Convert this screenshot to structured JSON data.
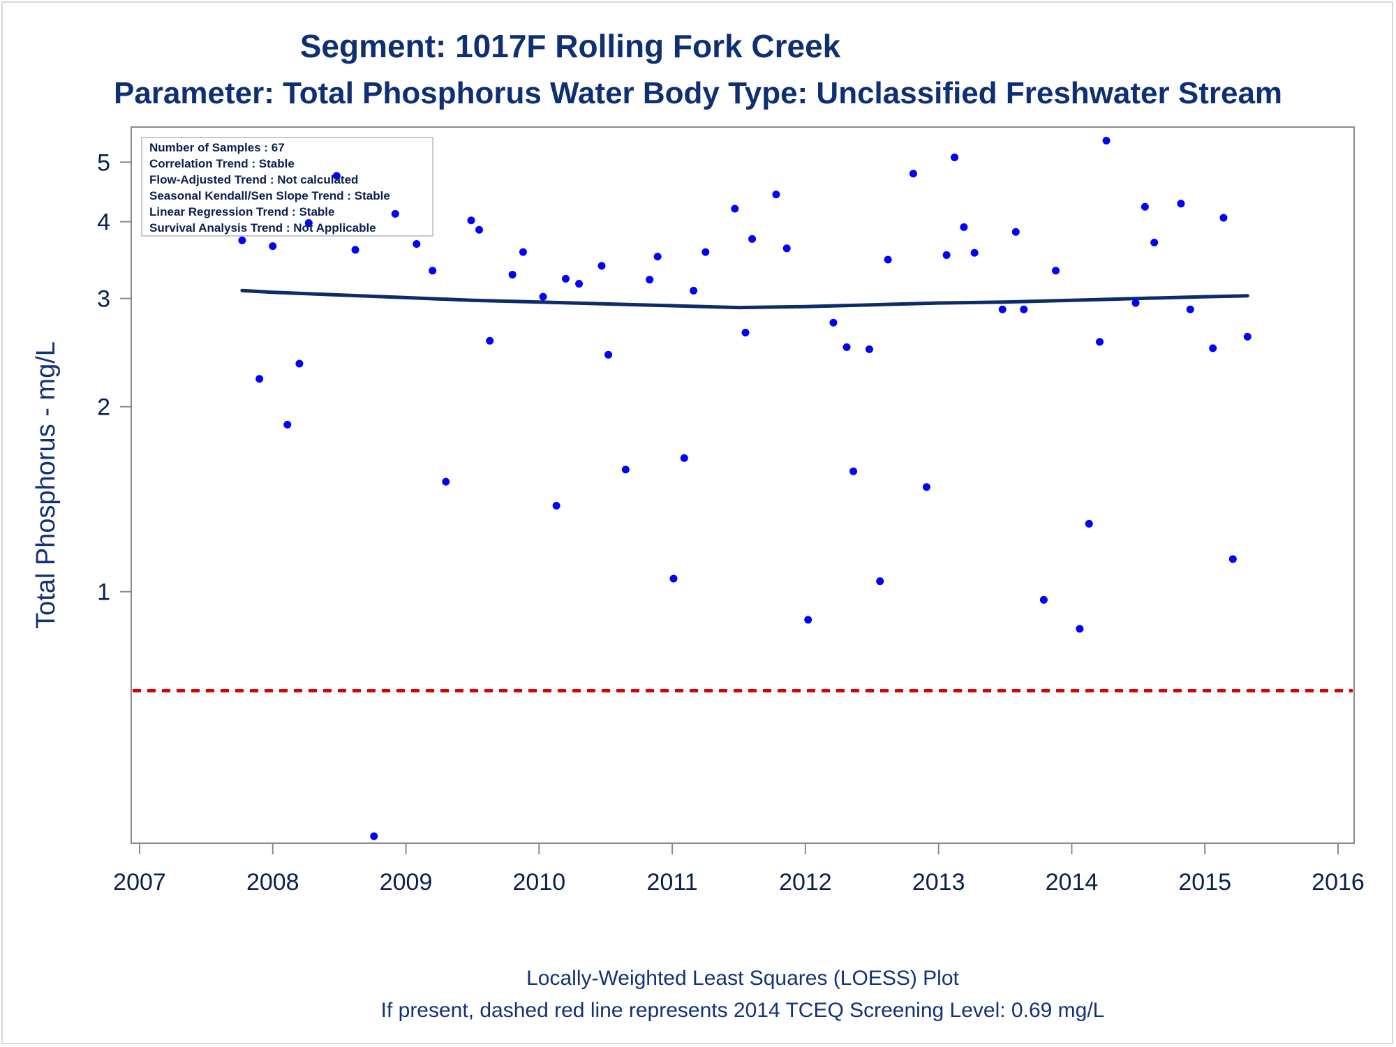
{
  "titles": {
    "line1": "Segment: 1017F  Rolling Fork Creek",
    "line2": "Parameter: Total Phosphorus   Water Body Type: Unclassified Freshwater Stream"
  },
  "stats": [
    "Number of Samples : 67",
    "Correlation Trend : Stable",
    "Flow-Adjusted Trend : Not calculated",
    "Seasonal Kendall/Sen Slope Trend : Stable",
    "Linear Regression Trend : Stable",
    "Survival Analysis Trend : Not Applicable"
  ],
  "footnotes": {
    "line1": "Locally-Weighted Least Squares (LOESS) Plot",
    "line2": "If present, dashed red line represents 2014 TCEQ Screening Level: 0.69 mg/L"
  },
  "colors": {
    "points": "#0000ff",
    "loess": "#0b2b6b",
    "screening": "#dd0000",
    "axis": "#8a8a8a"
  },
  "chart_data": {
    "type": "scatter",
    "scale_y": "log",
    "ylabel": "Total Phosphorus - mg/L",
    "xlabel": "",
    "xlim": [
      2007,
      2016
    ],
    "ylim": [
      0.4,
      5.6
    ],
    "x_ticks": [
      2007,
      2008,
      2009,
      2010,
      2011,
      2012,
      2013,
      2014,
      2015,
      2016
    ],
    "y_ticks": [
      1,
      2,
      3,
      4,
      5
    ],
    "grid": false,
    "screening_level": 0.69,
    "points": [
      {
        "x": 2007.77,
        "y": 3.73
      },
      {
        "x": 2007.9,
        "y": 2.22
      },
      {
        "x": 2008.0,
        "y": 3.65
      },
      {
        "x": 2008.11,
        "y": 1.87
      },
      {
        "x": 2008.2,
        "y": 2.35
      },
      {
        "x": 2008.27,
        "y": 3.98
      },
      {
        "x": 2008.48,
        "y": 4.75
      },
      {
        "x": 2008.62,
        "y": 3.6
      },
      {
        "x": 2008.76,
        "y": 0.4
      },
      {
        "x": 2008.92,
        "y": 4.12
      },
      {
        "x": 2009.08,
        "y": 3.68
      },
      {
        "x": 2009.2,
        "y": 3.33
      },
      {
        "x": 2009.3,
        "y": 1.51
      },
      {
        "x": 2009.49,
        "y": 4.02
      },
      {
        "x": 2009.55,
        "y": 3.88
      },
      {
        "x": 2009.63,
        "y": 2.56
      },
      {
        "x": 2009.8,
        "y": 3.28
      },
      {
        "x": 2009.88,
        "y": 3.57
      },
      {
        "x": 2010.03,
        "y": 3.02
      },
      {
        "x": 2010.13,
        "y": 1.38
      },
      {
        "x": 2010.2,
        "y": 3.23
      },
      {
        "x": 2010.3,
        "y": 3.17
      },
      {
        "x": 2010.47,
        "y": 3.39
      },
      {
        "x": 2010.52,
        "y": 2.43
      },
      {
        "x": 2010.65,
        "y": 1.58
      },
      {
        "x": 2010.83,
        "y": 3.22
      },
      {
        "x": 2010.89,
        "y": 3.51
      },
      {
        "x": 2011.01,
        "y": 1.05
      },
      {
        "x": 2011.09,
        "y": 1.65
      },
      {
        "x": 2011.16,
        "y": 3.09
      },
      {
        "x": 2011.25,
        "y": 3.57
      },
      {
        "x": 2011.47,
        "y": 4.2
      },
      {
        "x": 2011.55,
        "y": 2.64
      },
      {
        "x": 2011.6,
        "y": 3.75
      },
      {
        "x": 2011.78,
        "y": 4.43
      },
      {
        "x": 2011.86,
        "y": 3.62
      },
      {
        "x": 2012.02,
        "y": 0.9
      },
      {
        "x": 2012.21,
        "y": 2.74
      },
      {
        "x": 2012.31,
        "y": 2.5
      },
      {
        "x": 2012.36,
        "y": 1.57
      },
      {
        "x": 2012.48,
        "y": 2.48
      },
      {
        "x": 2012.56,
        "y": 1.04
      },
      {
        "x": 2012.62,
        "y": 3.47
      },
      {
        "x": 2012.81,
        "y": 4.79
      },
      {
        "x": 2012.91,
        "y": 1.48
      },
      {
        "x": 2013.06,
        "y": 3.53
      },
      {
        "x": 2013.12,
        "y": 5.09
      },
      {
        "x": 2013.19,
        "y": 3.92
      },
      {
        "x": 2013.27,
        "y": 3.56
      },
      {
        "x": 2013.48,
        "y": 2.88
      },
      {
        "x": 2013.58,
        "y": 3.85
      },
      {
        "x": 2013.64,
        "y": 2.88
      },
      {
        "x": 2013.79,
        "y": 0.97
      },
      {
        "x": 2013.88,
        "y": 3.33
      },
      {
        "x": 2014.06,
        "y": 0.87
      },
      {
        "x": 2014.13,
        "y": 1.29
      },
      {
        "x": 2014.21,
        "y": 2.55
      },
      {
        "x": 2014.26,
        "y": 5.42
      },
      {
        "x": 2014.48,
        "y": 2.95
      },
      {
        "x": 2014.55,
        "y": 4.23
      },
      {
        "x": 2014.62,
        "y": 3.7
      },
      {
        "x": 2014.82,
        "y": 4.28
      },
      {
        "x": 2014.89,
        "y": 2.88
      },
      {
        "x": 2015.06,
        "y": 2.49
      },
      {
        "x": 2015.14,
        "y": 4.06
      },
      {
        "x": 2015.21,
        "y": 1.13
      },
      {
        "x": 2015.32,
        "y": 2.6
      }
    ],
    "loess": [
      {
        "x": 2007.77,
        "y": 3.09
      },
      {
        "x": 2008.0,
        "y": 3.07
      },
      {
        "x": 2008.5,
        "y": 3.04
      },
      {
        "x": 2009.0,
        "y": 3.01
      },
      {
        "x": 2009.5,
        "y": 2.98
      },
      {
        "x": 2010.0,
        "y": 2.96
      },
      {
        "x": 2010.5,
        "y": 2.94
      },
      {
        "x": 2011.0,
        "y": 2.92
      },
      {
        "x": 2011.5,
        "y": 2.9
      },
      {
        "x": 2012.0,
        "y": 2.91
      },
      {
        "x": 2012.5,
        "y": 2.93
      },
      {
        "x": 2013.0,
        "y": 2.95
      },
      {
        "x": 2013.5,
        "y": 2.96
      },
      {
        "x": 2014.0,
        "y": 2.98
      },
      {
        "x": 2014.5,
        "y": 3.0
      },
      {
        "x": 2015.0,
        "y": 3.02
      },
      {
        "x": 2015.32,
        "y": 3.03
      }
    ]
  }
}
